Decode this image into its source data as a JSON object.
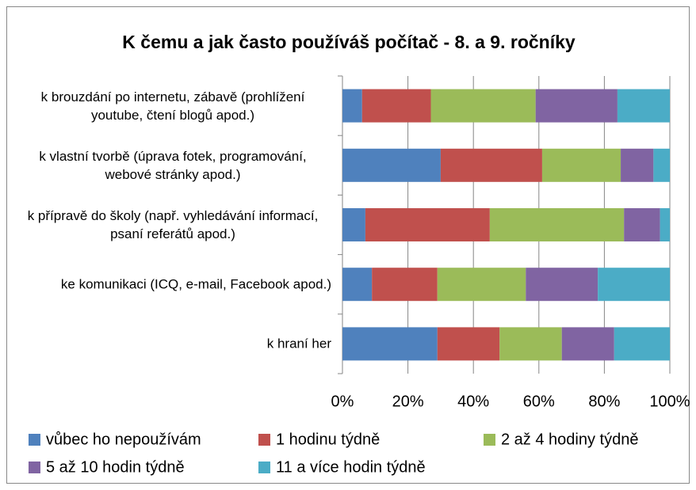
{
  "chart_data": {
    "type": "stacked-barh",
    "title": "K čemu a jak často používáš počítač - 8. a 9. ročníky",
    "categories": [
      "k brouzdání po internetu, zábavě (prohlížení youtube, čtení blogů apod.)",
      "k vlastní tvorbě (úprava fotek, programování, webové stránky apod.)",
      "k přípravě do školy (např. vyhledávání informací, psaní referátů apod.)",
      "ke komunikaci (ICQ, e-mail, Facebook apod.)",
      "k hraní her"
    ],
    "series": [
      {
        "name": "vůbec ho nepoužívám",
        "color": "#4f81bd",
        "values": [
          6,
          30,
          7,
          9,
          29
        ]
      },
      {
        "name": "1 hodinu týdně",
        "color": "#c0504d",
        "values": [
          21,
          31,
          38,
          20,
          19
        ]
      },
      {
        "name": "2 až 4 hodiny týdně",
        "color": "#9bbb59",
        "values": [
          32,
          24,
          41,
          27,
          19
        ]
      },
      {
        "name": "5 až 10 hodin týdně",
        "color": "#8064a2",
        "values": [
          25,
          10,
          11,
          22,
          16
        ]
      },
      {
        "name": "11 a více hodin týdně",
        "color": "#4bacc6",
        "values": [
          16,
          5,
          3,
          22,
          17
        ]
      }
    ],
    "xlim": [
      0,
      100
    ],
    "xticks": [
      {
        "value": 0,
        "label": "0%"
      },
      {
        "value": 20,
        "label": "20%"
      },
      {
        "value": 40,
        "label": "40%"
      },
      {
        "value": 60,
        "label": "60%"
      },
      {
        "value": 80,
        "label": "80%"
      },
      {
        "value": 100,
        "label": "100%"
      }
    ],
    "grid": true,
    "legend": "bottom"
  }
}
